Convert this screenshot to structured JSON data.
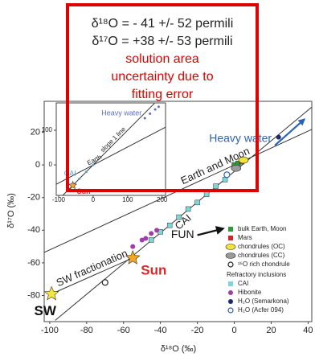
{
  "chart_data": [
    {
      "type": "scatter",
      "xlabel": "δ¹⁸O (‰)",
      "ylabel": "δ¹⁷O (‰)",
      "xlim": [
        -103,
        42
      ],
      "ylim": [
        -96,
        39
      ],
      "xticks": [
        -100,
        -80,
        -60,
        -40,
        -20,
        0,
        20,
        40
      ],
      "yticks": [
        -80,
        -60,
        -40,
        -20,
        0,
        20
      ],
      "box": [
        "δ¹⁸O = - 41 +/- 52 permili",
        "δ¹⁷O = +38 +/- 53 permili",
        "solution area",
        "uncertainty due to",
        "fitting error"
      ],
      "legend_header": "Refractory inclusions",
      "series": [
        {
          "name": "Earth and Moon",
          "marker": "line",
          "color": "#333333",
          "x": [
            -103,
            42
          ],
          "values": [
            -53.6,
            21.8
          ]
        },
        {
          "name": "CAI",
          "marker": "line",
          "color": "#333333",
          "x": [
            -97,
            42
          ],
          "values": [
            -95.2,
            35.5
          ]
        },
        {
          "name": "SW fractionation",
          "marker": "line",
          "color": "#333333",
          "x": [
            -99,
            -55
          ],
          "values": [
            -79,
            -57
          ]
        },
        {
          "name": "Heavy water",
          "marker": "arrow",
          "color": "#2a62b8",
          "x": [
            22,
            38
          ],
          "values": [
            12,
            28
          ]
        },
        {
          "name": "FUN",
          "marker": "arrow",
          "color": "#111111",
          "x": [
            -20,
            -6
          ],
          "values": [
            -43,
            -39
          ]
        },
        {
          "name": "bulk Earth, Moon",
          "marker": "square",
          "color": "#2e9a3a",
          "legend": "main",
          "x": [
            0,
            2
          ],
          "values": [
            0,
            1
          ]
        },
        {
          "name": "Mars",
          "marker": "square",
          "color": "#d02828",
          "legend": "main",
          "x": [
            4
          ],
          "values": [
            2
          ]
        },
        {
          "name": "chondrules (OC)",
          "marker": "ellipse",
          "color": "#f2e23a",
          "legend": "main",
          "x": [
            5
          ],
          "values": [
            3
          ]
        },
        {
          "name": "chondrules (CC)",
          "marker": "ellipse",
          "color": "#9a9a9a",
          "legend": "main",
          "x": [
            1
          ],
          "values": [
            -2
          ]
        },
        {
          "name": "¹⁶O rich chondrule",
          "marker": "open",
          "color": "#222222",
          "legend": "main",
          "x": [
            -70
          ],
          "values": [
            -72
          ]
        },
        {
          "name": "CAI",
          "marker": "square",
          "color": "#7fd6d6",
          "legend": "inclusion",
          "x": [
            -45,
            -40,
            -35,
            -30,
            -25,
            -20,
            -15,
            -10,
            -5
          ],
          "values": [
            -46,
            -41,
            -37,
            -32,
            -27,
            -23,
            -18,
            -13,
            -9
          ]
        },
        {
          "name": "Hibonite",
          "marker": "circle",
          "color": "#a03ea8",
          "legend": "inclusion",
          "x": [
            -55,
            -50,
            -48,
            -45,
            -42
          ],
          "values": [
            -50,
            -46,
            -45,
            -42,
            -40
          ]
        },
        {
          "name": "H₂O (Semarkona)",
          "marker": "circle",
          "color": "#1c2a6a",
          "legend": "main",
          "x": [
            24
          ],
          "values": [
            17
          ]
        },
        {
          "name": "H₂O (Acfer 094)",
          "marker": "open",
          "color": "#2a62b8",
          "legend": "main",
          "x": [
            -4
          ],
          "values": [
            -6
          ]
        },
        {
          "name": "Sun",
          "marker": "star",
          "color": "#f5a623",
          "x": [
            -55
          ],
          "values": [
            -57
          ]
        },
        {
          "name": "SW",
          "marker": "star",
          "color": "#f5e642",
          "x": [
            -99
          ],
          "values": [
            -79
          ]
        }
      ]
    },
    {
      "type": "scatter",
      "xlim": [
        -107,
        210
      ],
      "ylim": [
        -88,
        179
      ],
      "xticks": [
        -100,
        0,
        100,
        200
      ],
      "yticks": [
        0,
        100
      ],
      "series": [
        {
          "name": "slope 1 line",
          "marker": "line",
          "color": "#333333",
          "x": [
            -88,
            178
          ],
          "values": [
            -88,
            178
          ]
        },
        {
          "name": "Earth",
          "marker": "line",
          "color": "#333333",
          "x": [
            -107,
            210
          ],
          "values": [
            -56,
            109
          ]
        },
        {
          "name": "Heavy water",
          "marker": "circle",
          "color": "#5a6fc8",
          "x": [
            150,
            165,
            180,
            190
          ],
          "values": [
            135,
            148,
            160,
            168
          ]
        },
        {
          "name": "CAI",
          "marker": "circle",
          "color": "#5aa0c0",
          "x": [
            -40,
            -20,
            0
          ],
          "values": [
            -40,
            -20,
            0
          ]
        },
        {
          "name": "Sun",
          "marker": "star",
          "color": "#f5a623",
          "x": [
            -59
          ],
          "values": [
            -59
          ]
        }
      ]
    }
  ]
}
